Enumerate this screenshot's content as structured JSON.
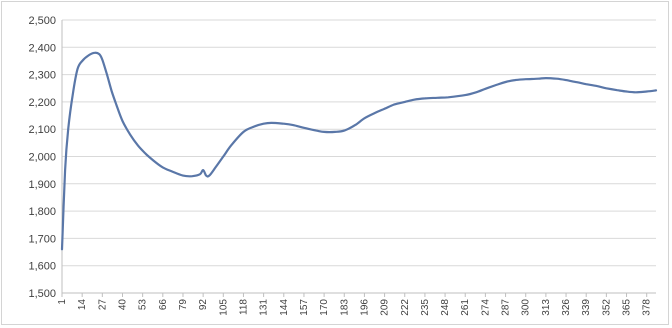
{
  "chart_data": {
    "type": "line",
    "title": "",
    "xlabel": "",
    "ylabel": "",
    "ylim": [
      1500,
      2500
    ],
    "yticks": [
      1500,
      1600,
      1700,
      1800,
      1900,
      2000,
      2100,
      2200,
      2300,
      2400,
      2500
    ],
    "ytick_labels": [
      "1,500",
      "1,600",
      "1,700",
      "1,800",
      "1,900",
      "2,000",
      "2,100",
      "2,200",
      "2,300",
      "2,400",
      "2,500"
    ],
    "xlim": [
      1,
      384
    ],
    "xticks": [
      1,
      14,
      27,
      40,
      53,
      66,
      79,
      92,
      105,
      118,
      131,
      144,
      157,
      170,
      183,
      196,
      209,
      222,
      235,
      248,
      261,
      274,
      287,
      300,
      313,
      326,
      339,
      352,
      365,
      378
    ],
    "xtick_labels": [
      "1",
      "14",
      "27",
      "40",
      "53",
      "66",
      "79",
      "92",
      "105",
      "118",
      "131",
      "144",
      "157",
      "170",
      "183",
      "196",
      "209",
      "222",
      "235",
      "248",
      "261",
      "274",
      "287",
      "300",
      "313",
      "326",
      "339",
      "352",
      "365",
      "378"
    ],
    "grid": "horizontal",
    "line_color": "#5a77a8",
    "series": [
      {
        "name": "",
        "x": [
          1,
          3,
          5,
          8,
          11,
          14,
          18,
          22,
          25,
          27,
          30,
          33,
          36,
          40,
          45,
          50,
          55,
          60,
          66,
          72,
          79,
          85,
          90,
          92,
          94,
          96,
          100,
          105,
          110,
          118,
          125,
          131,
          136,
          144,
          150,
          157,
          165,
          170,
          177,
          183,
          190,
          196,
          203,
          209,
          215,
          222,
          228,
          235,
          243,
          250,
          261,
          268,
          274,
          280,
          287,
          293,
          300,
          308,
          313,
          320,
          326,
          333,
          339,
          346,
          352,
          359,
          365,
          371,
          378,
          384
        ],
        "y": [
          1660,
          1950,
          2100,
          2230,
          2320,
          2350,
          2370,
          2380,
          2375,
          2355,
          2300,
          2240,
          2190,
          2130,
          2080,
          2040,
          2010,
          1985,
          1960,
          1945,
          1930,
          1928,
          1935,
          1950,
          1930,
          1930,
          1960,
          2000,
          2040,
          2090,
          2110,
          2120,
          2123,
          2120,
          2115,
          2105,
          2095,
          2090,
          2090,
          2095,
          2115,
          2140,
          2160,
          2175,
          2190,
          2200,
          2208,
          2213,
          2215,
          2217,
          2225,
          2235,
          2248,
          2260,
          2273,
          2280,
          2283,
          2285,
          2287,
          2285,
          2280,
          2272,
          2265,
          2258,
          2250,
          2243,
          2238,
          2235,
          2238,
          2242
        ]
      }
    ]
  }
}
